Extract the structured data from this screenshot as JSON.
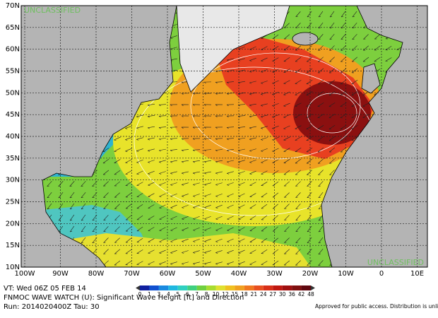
{
  "map": {
    "lat_labels": [
      "70N",
      "65N",
      "60N",
      "55N",
      "50N",
      "45N",
      "40N",
      "35N",
      "30N",
      "25N",
      "20N",
      "15N",
      "10N"
    ],
    "lon_labels": [
      "100W",
      "90W",
      "80W",
      "70W",
      "60W",
      "50W",
      "40W",
      "30W",
      "20W",
      "10W",
      "0",
      "10E"
    ],
    "watermarks": [
      "UNCLASSIFIED",
      "UNCLASSIFIED"
    ]
  },
  "legend": {
    "labels": [
      "0",
      "1",
      "3",
      "4",
      "5",
      "6",
      "7",
      "8",
      "10",
      "12",
      "15",
      "18",
      "21",
      "24",
      "27",
      "30",
      "36",
      "42",
      "48"
    ]
  },
  "footer": {
    "valid_time": "VT: Wed 06Z 05 FEB 14",
    "product": "FNMOC WAVE WATCH (U): Significant Wave Height [ft] and Direction",
    "run": "Run: 2014020400Z Tau: 30",
    "release": "Approved for public access. Distribution is unlimited."
  }
}
